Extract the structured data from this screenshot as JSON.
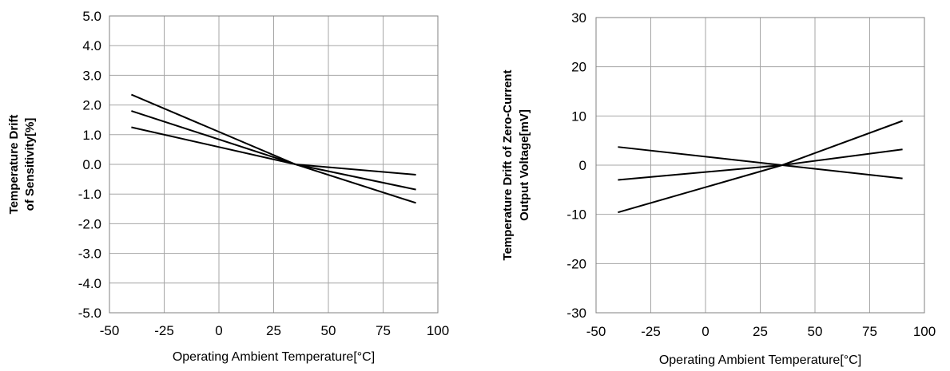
{
  "chart_data": [
    {
      "type": "line",
      "xlabel": "Operating Ambient Temperature[°C]",
      "ylabel": [
        "Temperature Drift",
        "of Sensitivity[%]"
      ],
      "xlim": [
        -50,
        100
      ],
      "ylim": [
        -5,
        5
      ],
      "x_ticks": [
        "-50",
        "-25",
        "0",
        "25",
        "50",
        "75",
        "100"
      ],
      "y_ticks": [
        "5.0",
        "4.0",
        "3.0",
        "2.0",
        "1.0",
        "0.0",
        "-1.0",
        "-2.0",
        "-3.0",
        "-4.0",
        "-5.0"
      ],
      "grid": true,
      "series": [
        {
          "x": [
            -40,
            35,
            90
          ],
          "y": [
            2.35,
            0.0,
            -1.3
          ]
        },
        {
          "x": [
            -40,
            35,
            90
          ],
          "y": [
            1.8,
            0.0,
            -0.85
          ]
        },
        {
          "x": [
            -40,
            35,
            90
          ],
          "y": [
            1.25,
            0.0,
            -0.35
          ]
        }
      ]
    },
    {
      "type": "line",
      "xlabel": "Operating Ambient Temperature[°C]",
      "ylabel": [
        "Temperature Drift of Zero-Current",
        "Output Voltage[mV]"
      ],
      "xlim": [
        -50,
        100
      ],
      "ylim": [
        -30,
        30
      ],
      "x_ticks": [
        "-50",
        "-25",
        "0",
        "25",
        "50",
        "75",
        "100"
      ],
      "y_ticks": [
        "30",
        "20",
        "10",
        "0",
        "-10",
        "-20",
        "-30"
      ],
      "grid": true,
      "series": [
        {
          "x": [
            -40,
            35,
            90
          ],
          "y": [
            3.7,
            0.0,
            -2.7
          ]
        },
        {
          "x": [
            -40,
            35,
            90
          ],
          "y": [
            -3.0,
            0.0,
            3.2
          ]
        },
        {
          "x": [
            -40,
            35,
            90
          ],
          "y": [
            -9.6,
            0.0,
            9.0
          ]
        }
      ]
    }
  ]
}
